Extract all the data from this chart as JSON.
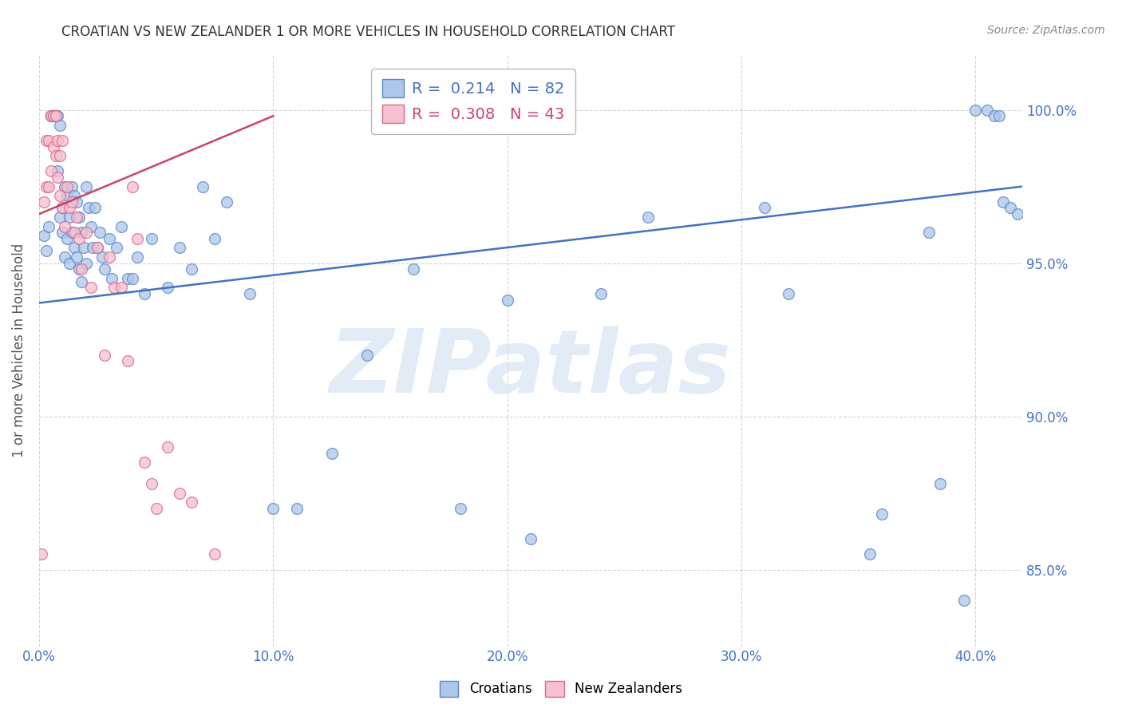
{
  "title": "CROATIAN VS NEW ZEALANDER 1 OR MORE VEHICLES IN HOUSEHOLD CORRELATION CHART",
  "source": "Source: ZipAtlas.com",
  "ylabel": "1 or more Vehicles in Household",
  "xlim": [
    0.0,
    0.42
  ],
  "ylim": [
    0.825,
    1.018
  ],
  "legend_blue": "R =  0.214   N = 82",
  "legend_pink": "R =  0.308   N = 43",
  "watermark_text": "ZIPatlas",
  "blue_fill": "#aec6e8",
  "pink_fill": "#f5c0d0",
  "blue_edge": "#5588cc",
  "pink_edge": "#dd6688",
  "line_blue": "#4472c4",
  "line_pink": "#cc4466",
  "axis_color": "#4472c4",
  "title_color": "#333333",
  "source_color": "#888888",
  "ylabel_color": "#555555",
  "grid_color": "#cccccc",
  "blue_trendline_x": [
    0.0,
    0.42
  ],
  "blue_trendline_y": [
    0.937,
    0.975
  ],
  "pink_trendline_x": [
    0.0,
    0.1
  ],
  "pink_trendline_y": [
    0.966,
    0.998
  ],
  "blue_scatter_x": [
    0.002,
    0.003,
    0.004,
    0.005,
    0.005,
    0.006,
    0.006,
    0.007,
    0.007,
    0.008,
    0.008,
    0.009,
    0.009,
    0.01,
    0.01,
    0.011,
    0.011,
    0.012,
    0.012,
    0.013,
    0.013,
    0.014,
    0.014,
    0.015,
    0.015,
    0.016,
    0.016,
    0.017,
    0.017,
    0.018,
    0.018,
    0.019,
    0.02,
    0.02,
    0.021,
    0.022,
    0.023,
    0.024,
    0.025,
    0.026,
    0.027,
    0.028,
    0.03,
    0.031,
    0.033,
    0.035,
    0.038,
    0.04,
    0.042,
    0.045,
    0.048,
    0.055,
    0.06,
    0.065,
    0.07,
    0.075,
    0.08,
    0.09,
    0.1,
    0.11,
    0.125,
    0.14,
    0.16,
    0.18,
    0.2,
    0.21,
    0.24,
    0.26,
    0.31,
    0.32,
    0.355,
    0.36,
    0.38,
    0.385,
    0.395,
    0.4,
    0.405,
    0.408,
    0.41,
    0.412,
    0.415,
    0.418
  ],
  "blue_scatter_y": [
    0.959,
    0.954,
    0.962,
    0.998,
    0.998,
    0.998,
    0.998,
    0.998,
    0.998,
    0.998,
    0.98,
    0.995,
    0.965,
    0.968,
    0.96,
    0.975,
    0.952,
    0.972,
    0.958,
    0.965,
    0.95,
    0.975,
    0.96,
    0.972,
    0.955,
    0.97,
    0.952,
    0.965,
    0.948,
    0.96,
    0.944,
    0.955,
    0.975,
    0.95,
    0.968,
    0.962,
    0.955,
    0.968,
    0.955,
    0.96,
    0.952,
    0.948,
    0.958,
    0.945,
    0.955,
    0.962,
    0.945,
    0.945,
    0.952,
    0.94,
    0.958,
    0.942,
    0.955,
    0.948,
    0.975,
    0.958,
    0.97,
    0.94,
    0.87,
    0.87,
    0.888,
    0.92,
    0.948,
    0.87,
    0.938,
    0.86,
    0.94,
    0.965,
    0.968,
    0.94,
    0.855,
    0.868,
    0.96,
    0.878,
    0.84,
    1.0,
    1.0,
    0.998,
    0.998,
    0.97,
    0.968,
    0.966
  ],
  "pink_scatter_x": [
    0.001,
    0.002,
    0.003,
    0.003,
    0.004,
    0.004,
    0.005,
    0.005,
    0.006,
    0.006,
    0.007,
    0.007,
    0.008,
    0.008,
    0.009,
    0.009,
    0.01,
    0.01,
    0.011,
    0.012,
    0.013,
    0.014,
    0.015,
    0.016,
    0.017,
    0.018,
    0.02,
    0.022,
    0.025,
    0.028,
    0.03,
    0.032,
    0.035,
    0.038,
    0.04,
    0.042,
    0.045,
    0.048,
    0.05,
    0.055,
    0.06,
    0.065,
    0.075
  ],
  "pink_scatter_y": [
    0.855,
    0.97,
    0.975,
    0.99,
    0.975,
    0.99,
    0.98,
    0.998,
    0.988,
    0.998,
    0.985,
    0.998,
    0.978,
    0.99,
    0.972,
    0.985,
    0.968,
    0.99,
    0.962,
    0.975,
    0.968,
    0.97,
    0.96,
    0.965,
    0.958,
    0.948,
    0.96,
    0.942,
    0.955,
    0.92,
    0.952,
    0.942,
    0.942,
    0.918,
    0.975,
    0.958,
    0.885,
    0.878,
    0.87,
    0.89,
    0.875,
    0.872,
    0.855
  ]
}
